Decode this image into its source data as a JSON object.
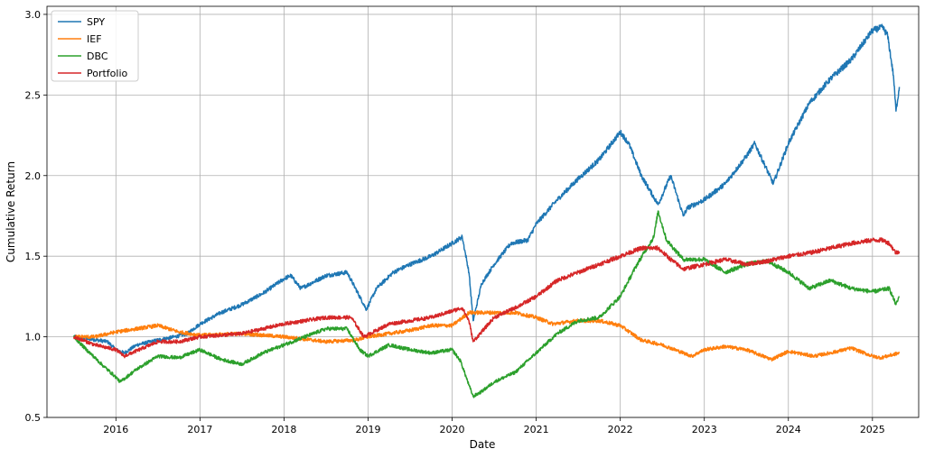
{
  "chart_data": {
    "type": "line",
    "title": "",
    "xlabel": "Date",
    "ylabel": "Cumulative Return",
    "xlim": [
      2015.18,
      2025.55
    ],
    "ylim": [
      0.5,
      3.05
    ],
    "x_ticks": [
      2016,
      2017,
      2018,
      2019,
      2020,
      2021,
      2022,
      2023,
      2024,
      2025
    ],
    "x_tick_labels": [
      "2016",
      "2017",
      "2018",
      "2019",
      "2020",
      "2021",
      "2022",
      "2023",
      "2024",
      "2025"
    ],
    "y_ticks": [
      0.5,
      1.0,
      1.5,
      2.0,
      2.5,
      3.0
    ],
    "y_tick_labels": [
      "0.5",
      "1.0",
      "1.5",
      "2.0",
      "2.5",
      "3.0"
    ],
    "grid": true,
    "legend_position": "top-left",
    "series": [
      {
        "name": "SPY",
        "color": "#1f77b4",
        "x": [
          2015.5,
          2015.65,
          2015.9,
          2016.0,
          2016.1,
          2016.25,
          2016.5,
          2016.7,
          2016.85,
          2017.0,
          2017.25,
          2017.5,
          2017.75,
          2018.0,
          2018.08,
          2018.2,
          2018.5,
          2018.75,
          2018.85,
          2018.98,
          2019.1,
          2019.3,
          2019.5,
          2019.75,
          2020.0,
          2020.12,
          2020.2,
          2020.25,
          2020.35,
          2020.5,
          2020.7,
          2020.9,
          2021.0,
          2021.25,
          2021.5,
          2021.75,
          2022.0,
          2022.1,
          2022.25,
          2022.45,
          2022.6,
          2022.75,
          2022.8,
          2023.0,
          2023.25,
          2023.5,
          2023.6,
          2023.82,
          2024.0,
          2024.25,
          2024.5,
          2024.75,
          2025.0,
          2025.12,
          2025.18,
          2025.25,
          2025.28,
          2025.32
        ],
        "values": [
          1.0,
          0.99,
          0.97,
          0.92,
          0.9,
          0.95,
          0.98,
          1.0,
          1.02,
          1.08,
          1.15,
          1.2,
          1.27,
          1.36,
          1.38,
          1.3,
          1.38,
          1.4,
          1.3,
          1.17,
          1.3,
          1.4,
          1.45,
          1.5,
          1.58,
          1.62,
          1.4,
          1.1,
          1.33,
          1.45,
          1.58,
          1.6,
          1.7,
          1.85,
          1.98,
          2.1,
          2.27,
          2.2,
          2.0,
          1.82,
          2.0,
          1.75,
          1.8,
          1.85,
          1.95,
          2.12,
          2.2,
          1.95,
          2.2,
          2.45,
          2.6,
          2.72,
          2.9,
          2.92,
          2.87,
          2.62,
          2.4,
          2.55
        ]
      },
      {
        "name": "IEF",
        "color": "#ff7f0e",
        "x": [
          2015.5,
          2015.75,
          2016.0,
          2016.25,
          2016.5,
          2016.75,
          2017.0,
          2017.5,
          2018.0,
          2018.5,
          2018.85,
          2019.0,
          2019.5,
          2019.75,
          2020.0,
          2020.2,
          2020.5,
          2020.75,
          2021.0,
          2021.2,
          2021.5,
          2021.75,
          2022.0,
          2022.25,
          2022.5,
          2022.75,
          2022.85,
          2023.0,
          2023.25,
          2023.5,
          2023.8,
          2024.0,
          2024.3,
          2024.5,
          2024.75,
          2025.0,
          2025.1,
          2025.32
        ],
        "values": [
          1.0,
          1.0,
          1.03,
          1.05,
          1.07,
          1.03,
          1.01,
          1.02,
          1.0,
          0.97,
          0.98,
          1.0,
          1.04,
          1.07,
          1.07,
          1.15,
          1.15,
          1.15,
          1.12,
          1.08,
          1.1,
          1.1,
          1.07,
          0.98,
          0.95,
          0.9,
          0.88,
          0.92,
          0.94,
          0.92,
          0.86,
          0.91,
          0.88,
          0.9,
          0.93,
          0.88,
          0.87,
          0.9
        ]
      },
      {
        "name": "DBC",
        "color": "#2ca02c",
        "x": [
          2015.5,
          2015.65,
          2015.85,
          2016.0,
          2016.05,
          2016.25,
          2016.5,
          2016.75,
          2017.0,
          2017.25,
          2017.5,
          2017.75,
          2018.0,
          2018.25,
          2018.5,
          2018.75,
          2018.9,
          2019.0,
          2019.25,
          2019.5,
          2019.75,
          2020.0,
          2020.1,
          2020.2,
          2020.25,
          2020.35,
          2020.5,
          2020.75,
          2021.0,
          2021.25,
          2021.5,
          2021.75,
          2022.0,
          2022.2,
          2022.4,
          2022.45,
          2022.55,
          2022.75,
          2023.0,
          2023.25,
          2023.5,
          2023.75,
          2024.0,
          2024.25,
          2024.5,
          2024.75,
          2025.0,
          2025.2,
          2025.28,
          2025.32
        ],
        "values": [
          1.0,
          0.92,
          0.82,
          0.75,
          0.72,
          0.8,
          0.88,
          0.87,
          0.92,
          0.86,
          0.83,
          0.9,
          0.95,
          1.0,
          1.05,
          1.05,
          0.92,
          0.88,
          0.95,
          0.92,
          0.9,
          0.92,
          0.85,
          0.7,
          0.63,
          0.66,
          0.72,
          0.78,
          0.9,
          1.02,
          1.1,
          1.12,
          1.25,
          1.45,
          1.62,
          1.78,
          1.6,
          1.48,
          1.48,
          1.4,
          1.45,
          1.47,
          1.4,
          1.3,
          1.35,
          1.3,
          1.28,
          1.3,
          1.2,
          1.25
        ]
      },
      {
        "name": "Portfolio",
        "color": "#d62728",
        "x": [
          2015.5,
          2015.75,
          2016.0,
          2016.1,
          2016.5,
          2016.75,
          2017.0,
          2017.5,
          2018.0,
          2018.5,
          2018.8,
          2018.95,
          2019.25,
          2019.5,
          2019.75,
          2020.0,
          2020.12,
          2020.2,
          2020.25,
          2020.5,
          2020.75,
          2021.0,
          2021.25,
          2021.5,
          2021.75,
          2022.0,
          2022.25,
          2022.45,
          2022.6,
          2022.75,
          2023.0,
          2023.25,
          2023.5,
          2023.75,
          2024.0,
          2024.25,
          2024.5,
          2024.75,
          2025.0,
          2025.12,
          2025.2,
          2025.28,
          2025.32
        ],
        "values": [
          1.0,
          0.95,
          0.92,
          0.88,
          0.97,
          0.97,
          1.0,
          1.02,
          1.08,
          1.12,
          1.12,
          1.0,
          1.08,
          1.1,
          1.12,
          1.16,
          1.18,
          1.1,
          0.97,
          1.12,
          1.18,
          1.25,
          1.35,
          1.4,
          1.45,
          1.5,
          1.55,
          1.55,
          1.48,
          1.42,
          1.45,
          1.48,
          1.45,
          1.47,
          1.5,
          1.52,
          1.55,
          1.58,
          1.6,
          1.6,
          1.58,
          1.52,
          1.53
        ]
      }
    ]
  }
}
